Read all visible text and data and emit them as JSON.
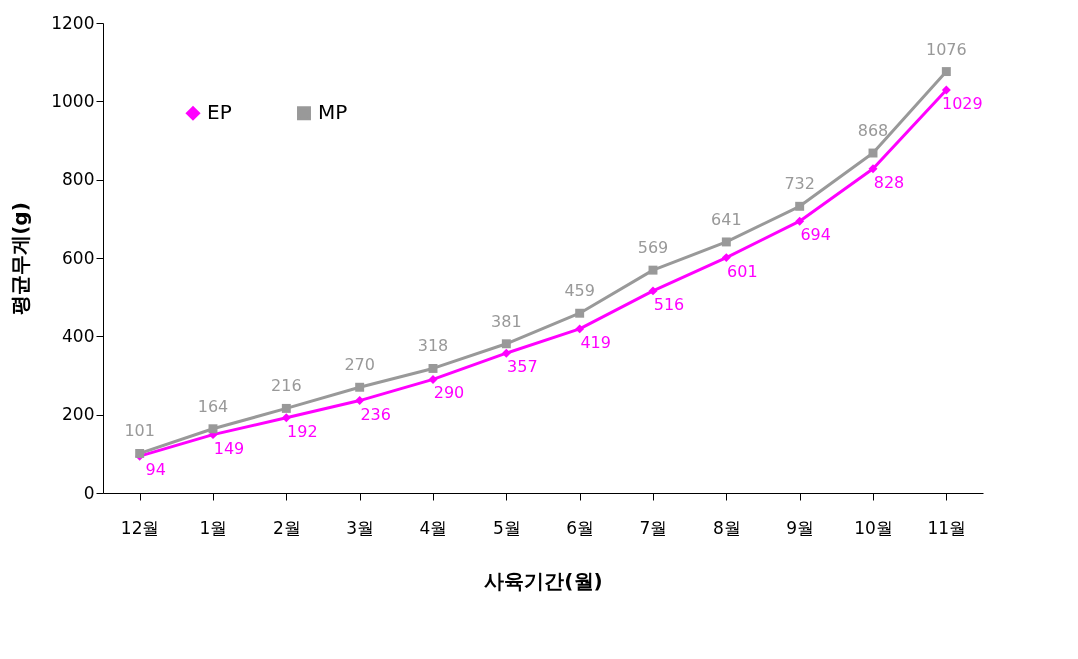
{
  "chart_data": {
    "type": "line",
    "xlabel": "사육기간(월)",
    "ylabel": "평균무게(g)",
    "categories": [
      "12월",
      "1월",
      "2월",
      "3월",
      "4월",
      "5월",
      "6월",
      "7월",
      "8월",
      "9월",
      "10월",
      "11월"
    ],
    "series": [
      {
        "name": "EP",
        "color": "#ff00ff",
        "marker": "diamond",
        "values": [
          94,
          149,
          192,
          236,
          290,
          357,
          419,
          516,
          601,
          694,
          828,
          1029
        ]
      },
      {
        "name": "MP",
        "color": "#999999",
        "marker": "square",
        "values": [
          101,
          164,
          216,
          270,
          318,
          381,
          459,
          569,
          641,
          732,
          868,
          1076
        ]
      }
    ],
    "ylim": [
      0,
      1200
    ],
    "yticks": [
      0,
      200,
      400,
      600,
      800,
      1000,
      1200
    ],
    "grid": false,
    "legend": "top left",
    "data_labels": true,
    "line_style": "solid"
  }
}
